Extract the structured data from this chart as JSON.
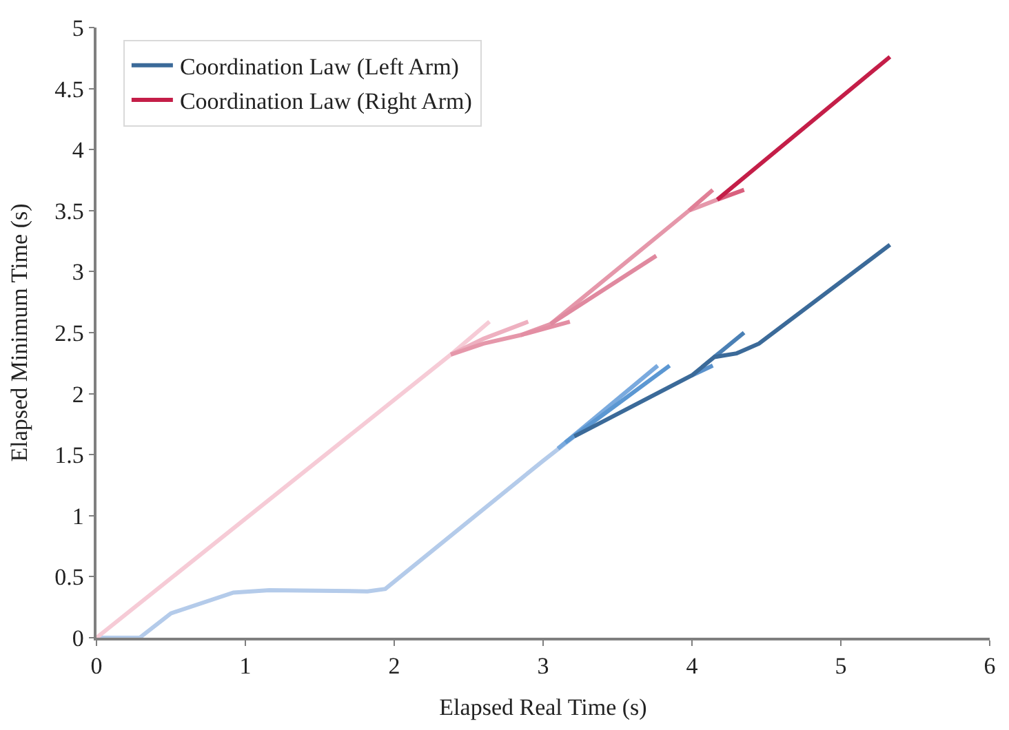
{
  "chart_data": {
    "type": "line",
    "xlabel": "Elapsed Real Time (s)",
    "ylabel": "Elapsed Minimum Time (s)",
    "xlim": [
      0,
      6
    ],
    "xticks": [
      0,
      1,
      2,
      3,
      4,
      5,
      6
    ],
    "ylim": [
      0,
      5
    ],
    "yticks": [
      0,
      0.5,
      1,
      1.5,
      2,
      2.5,
      3,
      3.5,
      4,
      4.5,
      5
    ],
    "legend": "top left",
    "marker": "none",
    "line_style": "solid",
    "series": [
      {
        "name": "Coordination Law (Left Arm)",
        "color": "#3b6a99",
        "x": [
          3.21,
          4.0,
          4.15,
          4.3,
          4.45,
          5.33
        ],
        "values": [
          1.65,
          2.15,
          2.3,
          2.33,
          2.41,
          3.22
        ]
      },
      {
        "name": "Coordination Law (Right Arm)",
        "color": "#c41e48",
        "x": [
          4.17,
          5.33
        ],
        "values": [
          3.59,
          4.76
        ]
      },
      {
        "color": "#b4cbea",
        "x": [
          0,
          0.29,
          0.5,
          0.92,
          1.16,
          1.82,
          1.94,
          3.0,
          3.21
        ],
        "values": [
          0,
          0,
          0.2,
          0.37,
          0.39,
          0.38,
          0.4,
          1.45,
          1.65
        ]
      },
      {
        "color": "#7aaade",
        "x": [
          3.1,
          3.77
        ],
        "values": [
          1.55,
          2.23
        ]
      },
      {
        "color": "#5b97d2",
        "x": [
          3.15,
          3.85
        ],
        "values": [
          1.6,
          2.23
        ]
      },
      {
        "color": "#5a92cc",
        "x": [
          4.0,
          4.14
        ],
        "values": [
          2.15,
          2.23
        ]
      },
      {
        "color": "#4a80b5",
        "x": [
          4.15,
          4.35
        ],
        "values": [
          2.3,
          2.5
        ]
      },
      {
        "color": "#f6cbd6",
        "x": [
          0,
          2.38,
          2.64
        ],
        "values": [
          0,
          2.32,
          2.59
        ]
      },
      {
        "color": "#eeb0c0",
        "x": [
          2.38,
          2.6,
          2.9
        ],
        "values": [
          2.32,
          2.45,
          2.59
        ]
      },
      {
        "color": "#e597aa",
        "x": [
          2.38,
          2.6,
          2.85,
          3.05,
          3.98,
          4.17
        ],
        "values": [
          2.32,
          2.41,
          2.48,
          2.57,
          3.5,
          3.59
        ]
      },
      {
        "color": "#e38ea3",
        "x": [
          2.85,
          3.18
        ],
        "values": [
          2.48,
          2.59
        ]
      },
      {
        "color": "#e0899f",
        "x": [
          3.05,
          3.76
        ],
        "values": [
          2.57,
          3.13
        ]
      },
      {
        "color": "#e07f96",
        "x": [
          3.98,
          4.14
        ],
        "values": [
          3.5,
          3.67
        ]
      },
      {
        "color": "#d9607e",
        "x": [
          4.17,
          4.35
        ],
        "values": [
          3.59,
          3.67
        ]
      }
    ]
  }
}
